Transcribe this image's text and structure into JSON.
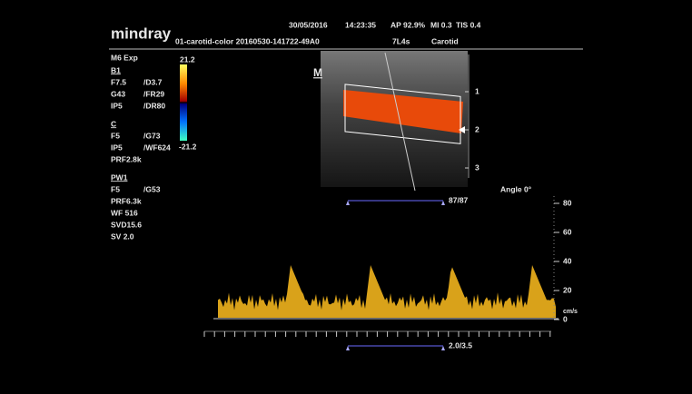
{
  "header": {
    "brand": "mindray",
    "date": "30/05/2016",
    "time": "14:23:35",
    "ap": "AP 92.9%",
    "mi": "MI 0.3",
    "tis": "TIS 0.4",
    "file": "01-carotid-color 20160530-141722-49A0",
    "probe": "7L4s",
    "preset": "Carotid"
  },
  "params": {
    "mode": "M6 Exp",
    "b_title": "B1",
    "b_rows": [
      [
        "F7.5",
        "/D3.7"
      ],
      [
        "G43",
        "/FR29"
      ],
      [
        "IP5",
        "/DR80"
      ]
    ],
    "c_title": "C",
    "c_rows": [
      [
        "F5",
        "/G73"
      ],
      [
        "IP5",
        "/WF624"
      ],
      [
        "PRF2.8k"
      ]
    ],
    "pw_title": "PW1",
    "pw_rows": [
      [
        "F5",
        "/G53"
      ],
      [
        "PRF6.3k"
      ],
      [
        "WF 516"
      ],
      [
        "SVD15.6"
      ],
      [
        "SV 2.0"
      ]
    ]
  },
  "colorbar": {
    "max": "21.2",
    "min": "-21.2"
  },
  "image": {
    "marker": "M",
    "depth_labels": [
      "1",
      "2",
      "3"
    ],
    "gate": "87/87",
    "angle": "Angle 0°"
  },
  "spectrum": {
    "scale_labels": [
      "80",
      "60",
      "40",
      "20",
      "0"
    ],
    "unit": "cm/s",
    "sweep": "2.0/3.5"
  }
}
